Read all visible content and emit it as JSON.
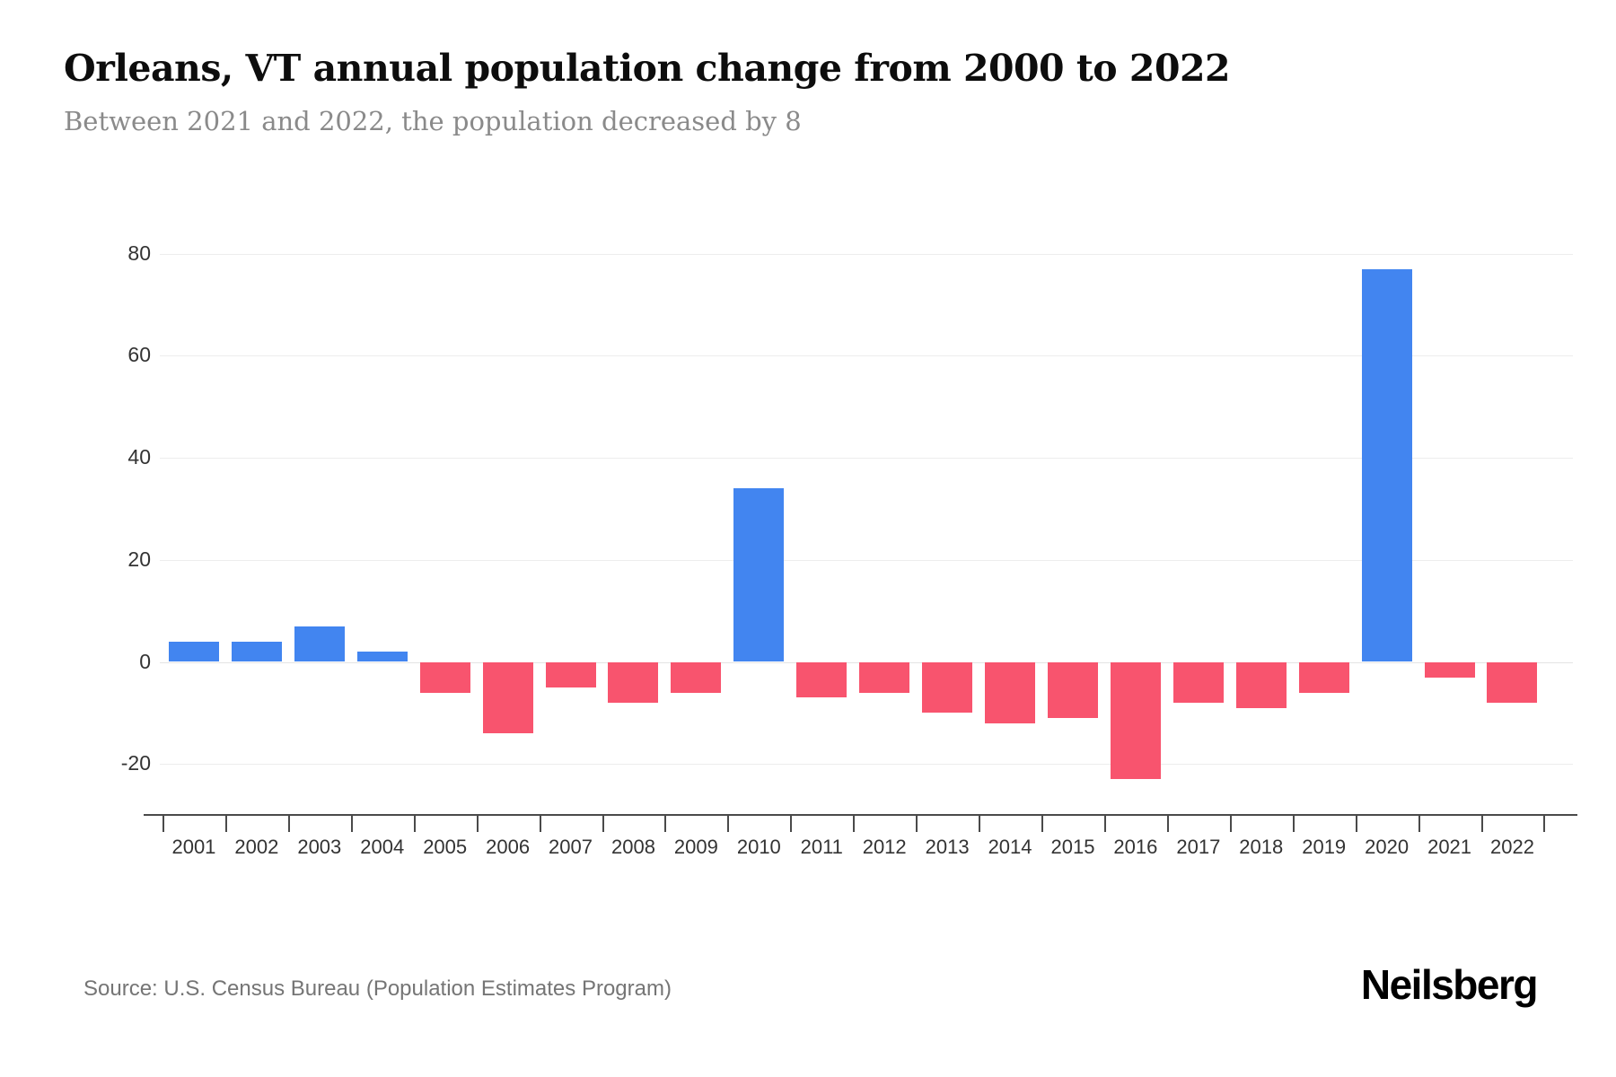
{
  "header": {
    "title": "Orleans, VT annual population change from 2000 to 2022",
    "subtitle": "Between 2021 and 2022, the population decreased by 8"
  },
  "chart_data": {
    "type": "bar",
    "title": "Orleans, VT annual population change from 2000 to 2022",
    "subtitle": "Between 2021 and 2022, the population decreased by 8",
    "xlabel": "",
    "ylabel": "",
    "categories": [
      "2001",
      "2002",
      "2003",
      "2004",
      "2005",
      "2006",
      "2007",
      "2008",
      "2009",
      "2010",
      "2011",
      "2012",
      "2013",
      "2014",
      "2015",
      "2016",
      "2017",
      "2018",
      "2019",
      "2020",
      "2021",
      "2022"
    ],
    "values": [
      4,
      4,
      7,
      2,
      -6,
      -14,
      -5,
      -8,
      -6,
      34,
      -7,
      -6,
      -10,
      -12,
      -11,
      -23,
      -8,
      -9,
      -6,
      77,
      -3,
      -8
    ],
    "ylim": [
      -27,
      88
    ],
    "yticks": [
      {
        "v": 80,
        "label": "80"
      },
      {
        "v": 60,
        "label": "60"
      },
      {
        "v": 40,
        "label": "40"
      },
      {
        "v": 20,
        "label": "20"
      },
      {
        "v": 0,
        "label": "0"
      },
      {
        "v": -20,
        "label": "-20"
      }
    ],
    "grid": true,
    "legend": "none",
    "positive_color": "#4285f0",
    "negative_color": "#f8546e"
  },
  "footer": {
    "source": "Source: U.S. Census Bureau (Population Estimates Program)",
    "brand": "Neilsberg"
  }
}
